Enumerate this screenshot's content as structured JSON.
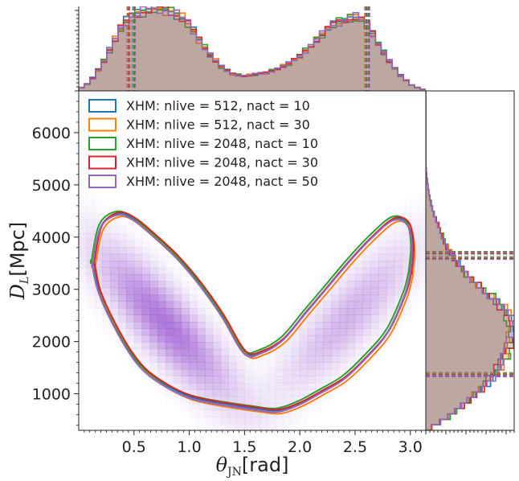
{
  "chart_data": [
    {
      "type": "heatmap",
      "name": "joint-posterior",
      "xlabel_symbol": "θ",
      "xlabel_sub": "JN",
      "xlabel_unit": "[rad]",
      "ylabel_symbol": "D",
      "ylabel_sub": "L",
      "ylabel_unit": "[Mpc]",
      "xlim": [
        0.0,
        3.14
      ],
      "ylim": [
        300,
        6800
      ],
      "xticks": [
        0.5,
        1.0,
        1.5,
        2.0,
        2.5,
        3.0
      ],
      "xtick_labels": [
        "0.5",
        "1.0",
        "1.5",
        "2.0",
        "2.5",
        "3.0"
      ],
      "yticks": [
        1000,
        2000,
        3000,
        4000,
        5000,
        6000
      ],
      "ytick_labels": [
        "1000",
        "2000",
        "3000",
        "4000",
        "5000",
        "6000"
      ],
      "density_color": "#9b59d0",
      "legend_position": "upper-left",
      "series": [
        {
          "name": "XHM: nlive = 512, nact = 10",
          "color": "#1f77b4"
        },
        {
          "name": "XHM: nlive = 512, nact = 30",
          "color": "#ff7f0e"
        },
        {
          "name": "XHM: nlive = 2048, nact = 10",
          "color": "#2ca02c"
        },
        {
          "name": "XHM: nlive = 2048, nact = 30",
          "color": "#d62728"
        },
        {
          "name": "XHM: nlive = 2048, nact = 50",
          "color": "#9467bd"
        }
      ],
      "contour_outer_upper": [
        [
          0.13,
          3500
        ],
        [
          0.2,
          4200
        ],
        [
          0.35,
          4450
        ],
        [
          0.5,
          4350
        ],
        [
          0.7,
          4000
        ],
        [
          0.9,
          3600
        ],
        [
          1.1,
          3100
        ],
        [
          1.3,
          2500
        ],
        [
          1.5,
          1800
        ],
        [
          1.65,
          1800
        ],
        [
          1.85,
          2050
        ],
        [
          2.05,
          2550
        ],
        [
          2.25,
          3050
        ],
        [
          2.45,
          3550
        ],
        [
          2.65,
          4000
        ],
        [
          2.85,
          4350
        ],
        [
          2.98,
          4250
        ],
        [
          3.02,
          3800
        ],
        [
          3.0,
          3300
        ]
      ],
      "contour_outer_lower": [
        [
          0.13,
          3500
        ],
        [
          0.18,
          3000
        ],
        [
          0.28,
          2500
        ],
        [
          0.45,
          1850
        ],
        [
          0.6,
          1450
        ],
        [
          0.8,
          1150
        ],
        [
          1.0,
          950
        ],
        [
          1.2,
          850
        ],
        [
          1.4,
          780
        ],
        [
          1.6,
          720
        ],
        [
          1.8,
          680
        ],
        [
          2.0,
          820
        ],
        [
          2.2,
          1050
        ],
        [
          2.4,
          1300
        ],
        [
          2.6,
          1700
        ],
        [
          2.8,
          2200
        ],
        [
          2.95,
          2900
        ],
        [
          3.0,
          3300
        ]
      ],
      "density_peaks": [
        {
          "theta": 0.78,
          "dl": 2350,
          "weight": 1.0
        },
        {
          "theta": 2.45,
          "dl": 2500,
          "weight": 0.55
        }
      ]
    },
    {
      "type": "histogram",
      "name": "theta-jn-marginal",
      "x_range": [
        0.0,
        3.14
      ],
      "description": "bimodal marginal with peaks near 0.72 and 2.45 rad",
      "shape_values_x": [
        0.0,
        0.1,
        0.2,
        0.3,
        0.4,
        0.5,
        0.6,
        0.7,
        0.8,
        0.9,
        1.0,
        1.1,
        1.2,
        1.3,
        1.4,
        1.5,
        1.6,
        1.7,
        1.8,
        1.9,
        2.0,
        2.1,
        2.2,
        2.3,
        2.4,
        2.5,
        2.6,
        2.7,
        2.8,
        2.9,
        3.0,
        3.1
      ],
      "shape_values_y": [
        0.02,
        0.1,
        0.3,
        0.55,
        0.8,
        0.93,
        0.97,
        1.0,
        0.98,
        0.92,
        0.8,
        0.6,
        0.42,
        0.28,
        0.2,
        0.18,
        0.2,
        0.22,
        0.27,
        0.33,
        0.42,
        0.55,
        0.68,
        0.8,
        0.86,
        0.9,
        0.82,
        0.6,
        0.38,
        0.2,
        0.08,
        0.02
      ],
      "quantile_lines": [
        0.45,
        0.5,
        2.6,
        2.62
      ]
    },
    {
      "type": "histogram",
      "name": "distance-marginal",
      "orientation": "horizontal",
      "y_range": [
        300,
        6800
      ],
      "description": "unimodal marginal peaking near 2300 Mpc",
      "shape_values_y": [
        300,
        600,
        900,
        1200,
        1500,
        1800,
        2100,
        2400,
        2700,
        3000,
        3300,
        3600,
        3900,
        4200,
        4500,
        4800,
        5100,
        5400
      ],
      "shape_values_x": [
        0.02,
        0.3,
        0.52,
        0.7,
        0.85,
        0.94,
        1.0,
        0.98,
        0.88,
        0.66,
        0.46,
        0.32,
        0.22,
        0.15,
        0.08,
        0.04,
        0.015,
        0.0
      ],
      "quantile_lines": [
        1350,
        1380,
        3600,
        3700
      ]
    }
  ]
}
